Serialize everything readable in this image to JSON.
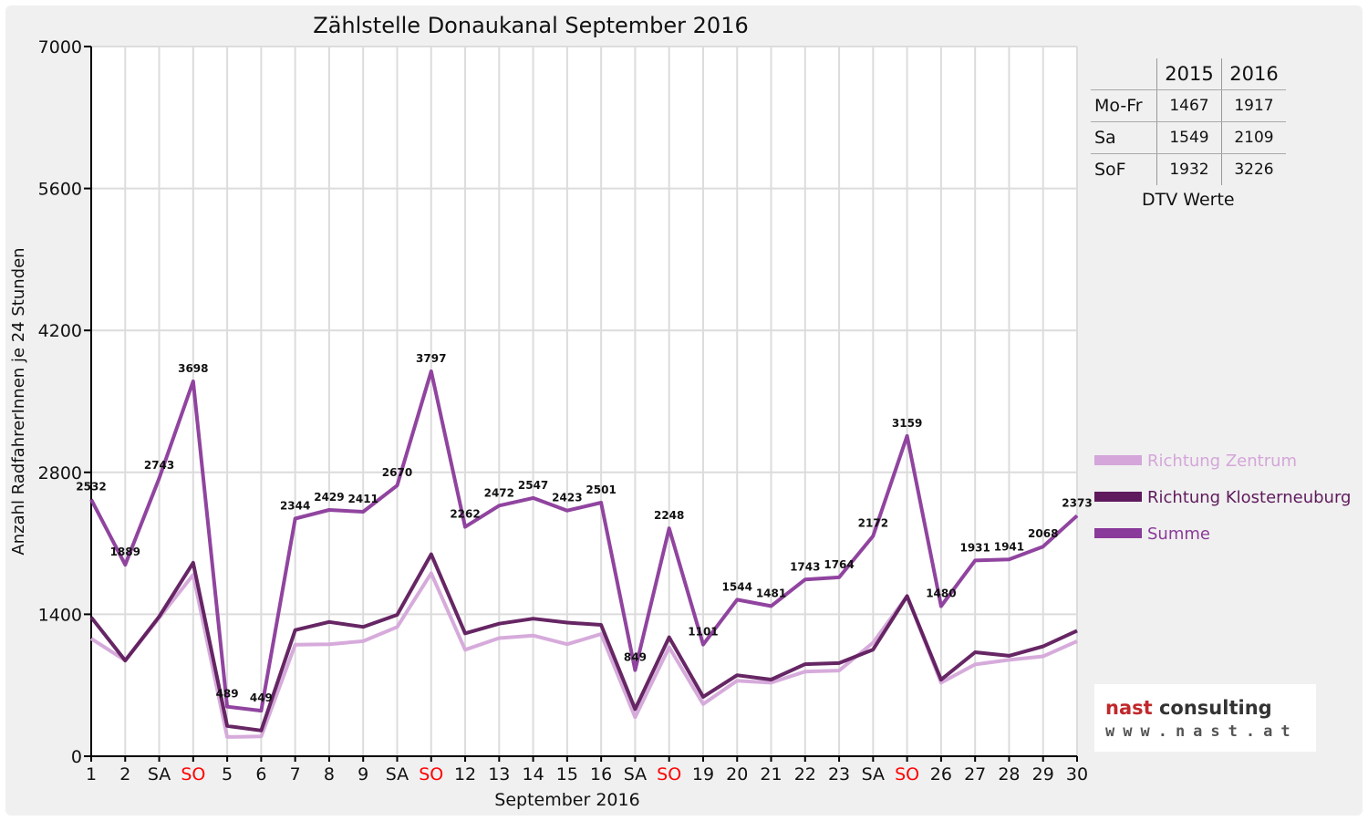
{
  "chart_data": {
    "type": "line",
    "title": "Zählstelle Donaukanal September 2016",
    "xlabel": "September 2016",
    "ylabel": "Anzahl RadfahrerInnen je 24 Stunden",
    "ylim": [
      0,
      7000
    ],
    "yticks": [
      0,
      1400,
      2800,
      4200,
      5600,
      7000
    ],
    "grid": true,
    "legend_position": "right",
    "categories": [
      "1",
      "2",
      "SA",
      "SO",
      "5",
      "6",
      "7",
      "8",
      "9",
      "SA",
      "SO",
      "12",
      "13",
      "14",
      "15",
      "16",
      "SA",
      "SO",
      "19",
      "20",
      "21",
      "22",
      "23",
      "SA",
      "SO",
      "26",
      "27",
      "28",
      "29",
      "30"
    ],
    "weekend_label_color": "#ff0000",
    "series": [
      {
        "name": "Richtung Zentrum",
        "color": "#d4a6d9",
        "values": [
          1160,
          945,
          1365,
          1790,
          190,
          195,
          1100,
          1105,
          1135,
          1275,
          1805,
          1050,
          1165,
          1190,
          1105,
          1205,
          385,
          1075,
          515,
          745,
          725,
          835,
          845,
          1120,
          1580,
          725,
          905,
          950,
          985,
          1135
        ],
        "show_labels": false
      },
      {
        "name": "Richtung Klosterneuburg",
        "color": "#5e1a5c",
        "values": [
          1370,
          944,
          1378,
          1908,
          299,
          254,
          1244,
          1324,
          1276,
          1395,
          1992,
          1212,
          1307,
          1357,
          1318,
          1296,
          464,
          1173,
          586,
          799,
          756,
          908,
          919,
          1052,
          1579,
          755,
          1026,
          991,
          1083,
          1238
        ],
        "show_labels": false
      },
      {
        "name": "Summe",
        "color": "#8a3a9a",
        "values": [
          2532,
          1889,
          2743,
          3698,
          489,
          449,
          2344,
          2429,
          2411,
          2670,
          3797,
          2262,
          2472,
          2547,
          2423,
          2501,
          849,
          2248,
          1101,
          1544,
          1481,
          1743,
          1764,
          2172,
          3159,
          1480,
          1931,
          1941,
          2068,
          2373
        ],
        "show_labels": true
      }
    ]
  },
  "dtv_table": {
    "caption": "DTV Werte",
    "columns": [
      "2015",
      "2016"
    ],
    "rows": [
      {
        "label": "Mo-Fr",
        "v2015": "1467",
        "v2016": "1917"
      },
      {
        "label": "Sa",
        "v2015": "1549",
        "v2016": "2109"
      },
      {
        "label": "SoF",
        "v2015": "1932",
        "v2016": "3226"
      }
    ]
  },
  "logo": {
    "word1": "nast",
    "word2": " consulting",
    "url": "www.nast.at",
    "color1": "#c0282c",
    "color2": "#333333"
  }
}
